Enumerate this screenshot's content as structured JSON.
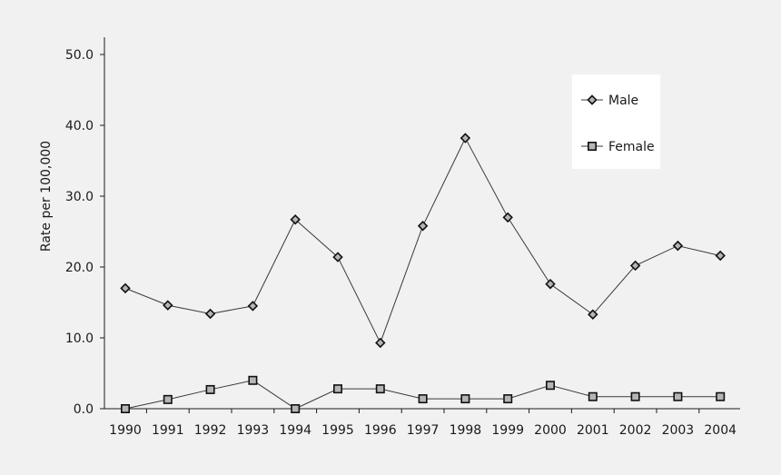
{
  "chart_data": {
    "type": "line",
    "ylabel": "Rate per 100,000",
    "xlabel": "",
    "ylim": [
      0,
      50
    ],
    "yticks": [
      "0.0",
      "10.0",
      "20.0",
      "30.0",
      "40.0",
      "50.0"
    ],
    "categories": [
      "1990",
      "1991",
      "1992",
      "1993",
      "1994",
      "1995",
      "1996",
      "1997",
      "1998",
      "1999",
      "2000",
      "2001",
      "2002",
      "2003",
      "2004"
    ],
    "series": [
      {
        "name": "Male",
        "marker": "diamond",
        "values": [
          17.0,
          14.6,
          13.4,
          14.5,
          26.7,
          21.4,
          9.3,
          25.8,
          38.2,
          27.0,
          17.6,
          13.3,
          20.2,
          23.0,
          21.6
        ]
      },
      {
        "name": "Female",
        "marker": "square",
        "values": [
          0.0,
          1.3,
          2.7,
          4.0,
          0.0,
          2.8,
          2.8,
          1.4,
          1.4,
          1.4,
          3.3,
          1.7,
          1.7,
          1.7,
          1.7
        ]
      }
    ],
    "legend_position": "top-right",
    "grid": false
  },
  "colors": {
    "background": "#f1f1f1",
    "axis": "#1a1a1a",
    "line": "#3a3a3a",
    "marker_fill": "#b5b5b5",
    "marker_stroke": "#111111",
    "legend_bg": "#ffffff"
  }
}
